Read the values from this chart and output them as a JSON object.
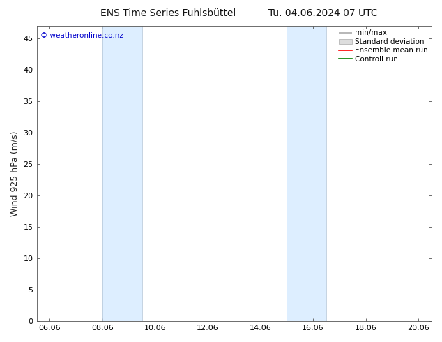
{
  "title_left": "ENS Time Series Fuhlsbüttel",
  "title_right": "Tu. 04.06.2024 07 UTC",
  "ylabel": "Wind 925 hPa (m/s)",
  "watermark": "© weatheronline.co.nz",
  "watermark_color": "#0000cc",
  "xlim_start": 5.5,
  "xlim_end": 20.5,
  "ylim_bottom": 0,
  "ylim_top": 47,
  "yticks": [
    0,
    5,
    10,
    15,
    20,
    25,
    30,
    35,
    40,
    45
  ],
  "xtick_labels": [
    "06.06",
    "08.06",
    "10.06",
    "12.06",
    "14.06",
    "16.06",
    "18.06",
    "20.06"
  ],
  "xtick_positions": [
    6,
    8,
    10,
    12,
    14,
    16,
    18,
    20
  ],
  "shaded_bands": [
    {
      "x_start": 8.0,
      "x_end": 9.5,
      "color": "#ddeeff"
    },
    {
      "x_start": 15.0,
      "x_end": 16.5,
      "color": "#ddeeff"
    }
  ],
  "vertical_lines_color": "#bbccdd",
  "legend_entries": [
    {
      "label": "min/max",
      "color": "#aaaaaa",
      "style": "minmax"
    },
    {
      "label": "Standard deviation",
      "color": "#cccccc",
      "style": "stddev"
    },
    {
      "label": "Ensemble mean run",
      "color": "#ff0000",
      "style": "line"
    },
    {
      "label": "Controll run",
      "color": "#008000",
      "style": "line"
    }
  ],
  "bg_color": "#ffffff",
  "title_fontsize": 10,
  "axis_label_fontsize": 9,
  "tick_fontsize": 8,
  "legend_fontsize": 7.5
}
